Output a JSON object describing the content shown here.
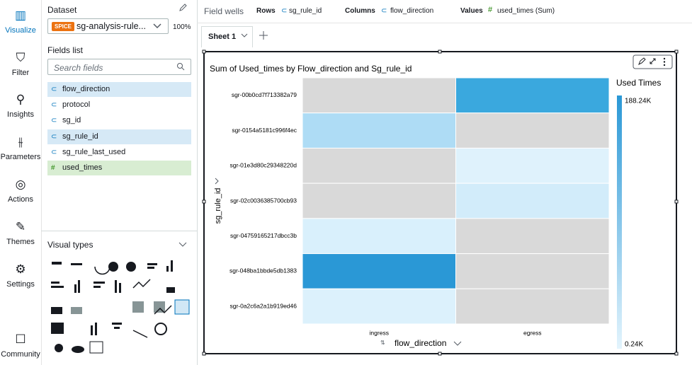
{
  "nav": [
    {
      "label": "Visualize",
      "selected": true
    },
    {
      "label": "Filter",
      "selected": false
    },
    {
      "label": "Insights",
      "selected": false
    },
    {
      "label": "Parameters",
      "selected": false
    },
    {
      "label": "Actions",
      "selected": false
    },
    {
      "label": "Themes",
      "selected": false
    },
    {
      "label": "Settings",
      "selected": false
    },
    {
      "label": "Community",
      "selected": false
    }
  ],
  "dataset": {
    "title": "Dataset",
    "badge": "SPICE",
    "name": "sg-analysis-rule...",
    "percent": "100%"
  },
  "fields": {
    "title": "Fields list",
    "search_placeholder": "Search fields",
    "items": [
      {
        "label": "flow_direction",
        "kind": "dimension",
        "selected": true
      },
      {
        "label": "protocol",
        "kind": "dimension",
        "selected": false
      },
      {
        "label": "sg_id",
        "kind": "dimension",
        "selected": false
      },
      {
        "label": "sg_rule_id",
        "kind": "dimension",
        "selected": true
      },
      {
        "label": "sg_rule_last_used",
        "kind": "dimension",
        "selected": false
      },
      {
        "label": "used_times",
        "kind": "measure",
        "selected": true
      }
    ]
  },
  "visual_types": {
    "title": "Visual types"
  },
  "field_wells": {
    "title": "Field wells",
    "rows_label": "Rows",
    "rows_value": "sg_rule_id",
    "columns_label": "Columns",
    "columns_value": "flow_direction",
    "values_label": "Values",
    "values_value": "used_times (Sum)"
  },
  "sheet": {
    "tab": "Sheet 1"
  },
  "visual": {
    "title": "Sum of Used_times by Flow_direction and Sg_rule_id",
    "row_axis": "sg_rule_id",
    "column_axis": "flow_direction",
    "columns": [
      "ingress",
      "egress"
    ],
    "rows": [
      "sgr-00b0cd7f713382a79",
      "sgr-0154a5181c996f4ec",
      "sgr-01e3d80c29348220d",
      "sgr-02c0036385700cb93",
      "sgr-04759165217dbcc3b",
      "sgr-048ba1bbde5db1383",
      "sgr-0a2c6a2a1b919ed46"
    ],
    "cells": [
      [
        null,
        "#3aa8de"
      ],
      [
        "#aedcf5",
        null
      ],
      [
        null,
        "#dff2fc"
      ],
      [
        null,
        "#d2ecfa"
      ],
      [
        "#d9f0fc",
        null
      ],
      [
        "#2a98d6",
        null
      ],
      [
        "#dcf1fc",
        null
      ]
    ],
    "empty_color": "#d9d9d9",
    "legend": {
      "title": "Used Times",
      "max_label": "188.24K",
      "min_label": "0.24K",
      "max_color": "#2a98d6",
      "min_color": "#e3f4fd"
    }
  }
}
